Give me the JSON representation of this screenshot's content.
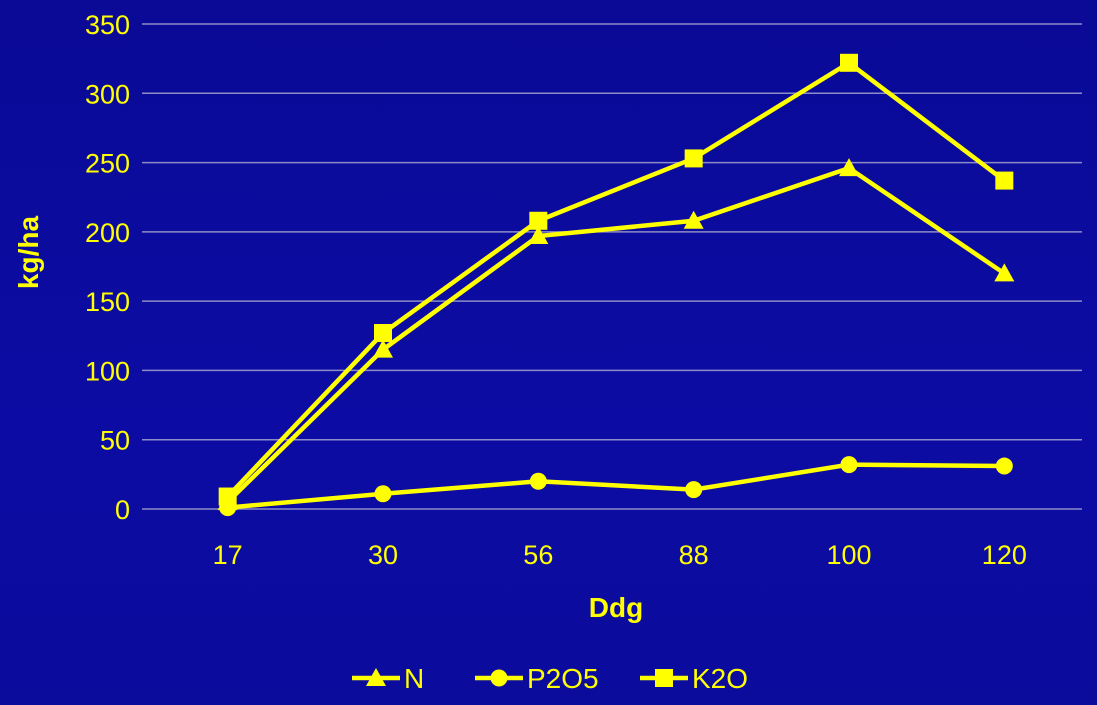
{
  "chart_data": {
    "type": "line",
    "categories": [
      "17",
      "30",
      "56",
      "88",
      "100",
      "120"
    ],
    "series": [
      {
        "name": "N",
        "marker": "triangle",
        "values": [
          5,
          115,
          197,
          208,
          246,
          170
        ]
      },
      {
        "name": "P2O5",
        "marker": "circle",
        "values": [
          1,
          11,
          20,
          14,
          32,
          31
        ]
      },
      {
        "name": "K2O",
        "marker": "square",
        "values": [
          9,
          127,
          208,
          253,
          322,
          237
        ]
      }
    ],
    "xlabel": "Ddg",
    "ylabel": "kg/ha",
    "ylim": [
      0,
      350
    ],
    "ytick_step": 50,
    "grid": true,
    "legend_position": "bottom",
    "colors": {
      "series": "#ffff00",
      "text": "#ffff00",
      "grid": "#8c8cc8",
      "background": "#0c0ca0"
    }
  }
}
